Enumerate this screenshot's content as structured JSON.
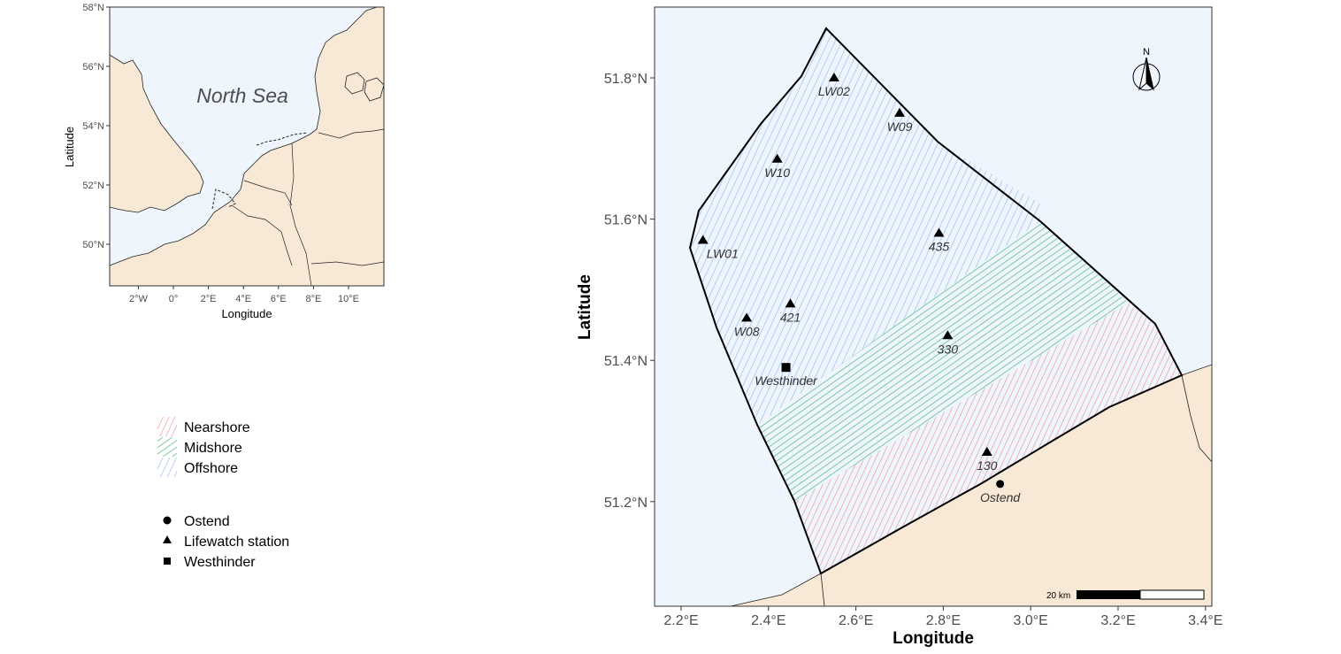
{
  "overview_map": {
    "sea_label": "North Sea",
    "x_axis_title": "Longitude",
    "y_axis_title": "Latitude",
    "x_ticks": [
      {
        "label": "2°W",
        "value": -2
      },
      {
        "label": "0°",
        "value": 0
      },
      {
        "label": "2°E",
        "value": 2
      },
      {
        "label": "4°E",
        "value": 4
      },
      {
        "label": "6°E",
        "value": 6
      },
      {
        "label": "8°E",
        "value": 8
      },
      {
        "label": "10°E",
        "value": 10
      }
    ],
    "y_ticks": [
      {
        "label": "58°N",
        "value": 58
      },
      {
        "label": "56°N",
        "value": 56
      },
      {
        "label": "54°N",
        "value": 54
      },
      {
        "label": "52°N",
        "value": 52
      },
      {
        "label": "50°N",
        "value": 50
      }
    ],
    "colors": {
      "sea": "#eef5fd",
      "land": "#f8e9d6"
    }
  },
  "main_map": {
    "x_axis_title": "Longitude",
    "y_axis_title": "Latitude",
    "x_ticks": [
      {
        "label": "2.2°E",
        "value": 2.2
      },
      {
        "label": "2.4°E",
        "value": 2.4
      },
      {
        "label": "2.6°E",
        "value": 2.6
      },
      {
        "label": "2.8°E",
        "value": 2.8
      },
      {
        "label": "3.0°E",
        "value": 3.0
      },
      {
        "label": "3.2°E",
        "value": 3.2
      },
      {
        "label": "3.4°E",
        "value": 3.4
      }
    ],
    "y_ticks": [
      {
        "label": "51.8°N",
        "value": 51.8
      },
      {
        "label": "51.6°N",
        "value": 51.6
      },
      {
        "label": "51.4°N",
        "value": 51.4
      },
      {
        "label": "51.2°N",
        "value": 51.2
      }
    ],
    "stations": [
      {
        "name": "LW02",
        "lon": 2.55,
        "lat": 51.8,
        "type": "lifewatch"
      },
      {
        "name": "W09",
        "lon": 2.7,
        "lat": 51.75,
        "type": "lifewatch"
      },
      {
        "name": "W10",
        "lon": 2.42,
        "lat": 51.685,
        "type": "lifewatch"
      },
      {
        "name": "435",
        "lon": 2.79,
        "lat": 51.58,
        "type": "lifewatch"
      },
      {
        "name": "LW01",
        "lon": 2.25,
        "lat": 51.57,
        "type": "lifewatch"
      },
      {
        "name": "421",
        "lon": 2.45,
        "lat": 51.48,
        "type": "lifewatch"
      },
      {
        "name": "W08",
        "lon": 2.35,
        "lat": 51.46,
        "type": "lifewatch"
      },
      {
        "name": "330",
        "lon": 2.81,
        "lat": 51.435,
        "type": "lifewatch"
      },
      {
        "name": "Westhinder",
        "lon": 2.44,
        "lat": 51.39,
        "type": "westhinder"
      },
      {
        "name": "130",
        "lon": 2.9,
        "lat": 51.27,
        "type": "lifewatch"
      },
      {
        "name": "Ostend",
        "lon": 2.93,
        "lat": 51.225,
        "type": "ostend"
      }
    ],
    "scale_bar_label": "20 km",
    "north_arrow_label": "N",
    "colors": {
      "sea": "#eef5fd",
      "land": "#f8e9d6",
      "nearshore": "#f08080",
      "midshore": "#3cb371",
      "offshore": "#8fb2e8"
    }
  },
  "legend": {
    "zones": [
      {
        "label": "Nearshore",
        "color": "#f08080"
      },
      {
        "label": "Midshore",
        "color": "#3cb371"
      },
      {
        "label": "Offshore",
        "color": "#8fb2e8"
      }
    ],
    "sites": [
      {
        "label": "Ostend",
        "shape": "circle"
      },
      {
        "label": "Lifewatch station",
        "shape": "triangle"
      },
      {
        "label": "Westhinder",
        "shape": "square"
      }
    ]
  }
}
